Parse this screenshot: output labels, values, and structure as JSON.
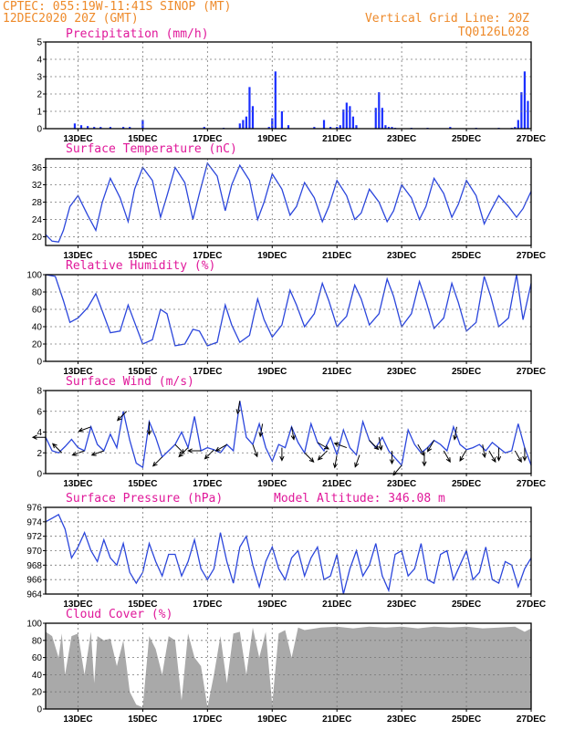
{
  "header": {
    "line1_left": "CPTEC:  055:19W-11:41S  SINOP (MT)",
    "line2_left": "12DEC2020 20Z (GMT)",
    "line1_right": "Vertical Grid Line: 20Z",
    "line2_right": "TQ0126L028"
  },
  "model_altitude_label": "Model Altitude: 346.08 m",
  "colors": {
    "line": "#2b46dc",
    "bar": "#1a2fff",
    "cloud": "#a9a9a9",
    "title": "#e0189a",
    "header": "#ee8a2a"
  },
  "chart_data": [
    {
      "type": "bar",
      "title": "Precipitation (mm/h)",
      "ylim": [
        0,
        5
      ],
      "yticks": [
        0,
        1,
        2,
        3,
        4,
        5
      ],
      "x_tick_labels": [
        "13DEC",
        "15DEC",
        "17DEC",
        "19DEC",
        "21DEC",
        "23DEC",
        "25DEC",
        "27DEC"
      ],
      "grid": true,
      "x": [
        12.9,
        13.1,
        13.3,
        13.5,
        13.7,
        14.0,
        14.4,
        14.6,
        15.0,
        16.9,
        17.5,
        18.0,
        18.1,
        18.2,
        18.3,
        18.4,
        18.9,
        19.0,
        19.1,
        19.3,
        19.5,
        20.3,
        20.6,
        20.8,
        21.0,
        21.1,
        21.2,
        21.3,
        21.4,
        21.5,
        21.6,
        22.2,
        22.3,
        22.4,
        22.5,
        22.6,
        22.7,
        22.8,
        23.3,
        23.8,
        24.5,
        25.3,
        26.0,
        26.4,
        26.5,
        26.6,
        26.7,
        26.8,
        26.9
      ],
      "values": [
        0.3,
        0.2,
        0.15,
        0.1,
        0.1,
        0.1,
        0.1,
        0.1,
        0.5,
        0.1,
        0.05,
        0.3,
        0.5,
        0.7,
        2.4,
        1.3,
        0.1,
        0.6,
        3.3,
        1.0,
        0.2,
        0.1,
        0.5,
        0.1,
        0.1,
        0.2,
        1.1,
        1.5,
        1.3,
        0.7,
        0.2,
        1.2,
        2.1,
        1.2,
        0.2,
        0.1,
        0.1,
        0.05,
        0.05,
        0.05,
        0.1,
        0.05,
        0.05,
        0.05,
        0.1,
        0.5,
        2.1,
        3.3,
        1.6
      ]
    },
    {
      "type": "line",
      "title": "Surface Temperature (nC)",
      "ylim": [
        18,
        38
      ],
      "yticks": [
        20,
        24,
        28,
        32,
        36
      ],
      "x_tick_labels": [
        "13DEC",
        "15DEC",
        "17DEC",
        "19DEC",
        "21DEC",
        "23DEC",
        "25DEC",
        "27DEC"
      ],
      "grid": true,
      "x": [
        12.0,
        12.2,
        12.4,
        12.55,
        12.75,
        13.0,
        13.3,
        13.55,
        13.75,
        14.0,
        14.3,
        14.55,
        14.75,
        15.0,
        15.3,
        15.55,
        15.75,
        16.0,
        16.3,
        16.55,
        16.75,
        17.0,
        17.3,
        17.55,
        17.75,
        18.0,
        18.3,
        18.55,
        18.75,
        19.0,
        19.3,
        19.55,
        19.75,
        20.0,
        20.3,
        20.55,
        20.75,
        21.0,
        21.3,
        21.55,
        21.75,
        22.0,
        22.3,
        22.55,
        22.75,
        23.0,
        23.3,
        23.55,
        23.75,
        24.0,
        24.3,
        24.55,
        24.75,
        25.0,
        25.3,
        25.55,
        25.75,
        26.0,
        26.3,
        26.55,
        26.75,
        27.0
      ],
      "values": [
        20.5,
        19.0,
        18.8,
        21.5,
        27.0,
        29.5,
        25.0,
        21.5,
        28.0,
        33.5,
        29.0,
        23.5,
        31.0,
        36.0,
        33.0,
        24.5,
        29.5,
        36.0,
        32.5,
        24.0,
        30.0,
        37.0,
        34.0,
        26.0,
        32.0,
        36.5,
        33.0,
        24.0,
        28.0,
        34.5,
        31.0,
        25.0,
        27.0,
        32.5,
        29.0,
        23.5,
        27.0,
        33.0,
        29.5,
        24.0,
        25.5,
        31.0,
        28.0,
        23.5,
        26.0,
        32.0,
        29.0,
        24.0,
        27.0,
        33.5,
        30.0,
        24.5,
        27.5,
        33.0,
        29.5,
        23.0,
        26.0,
        29.5,
        27.0,
        24.5,
        26.5,
        30.5
      ]
    },
    {
      "type": "line",
      "title": "Relative Humidity (%)",
      "ylim": [
        0,
        100
      ],
      "yticks": [
        0,
        20,
        40,
        60,
        80,
        100
      ],
      "x_tick_labels": [
        "13DEC",
        "15DEC",
        "17DEC",
        "19DEC",
        "21DEC",
        "23DEC",
        "25DEC",
        "27DEC"
      ],
      "grid": true,
      "x": [
        12.0,
        12.3,
        12.55,
        12.75,
        13.0,
        13.3,
        13.55,
        13.75,
        14.0,
        14.3,
        14.55,
        14.75,
        15.0,
        15.3,
        15.55,
        15.75,
        16.0,
        16.3,
        16.55,
        16.75,
        17.0,
        17.3,
        17.55,
        17.75,
        18.0,
        18.3,
        18.55,
        18.75,
        19.0,
        19.3,
        19.55,
        19.75,
        20.0,
        20.3,
        20.55,
        20.75,
        21.0,
        21.3,
        21.55,
        21.75,
        22.0,
        22.3,
        22.55,
        22.75,
        23.0,
        23.3,
        23.55,
        23.75,
        24.0,
        24.3,
        24.55,
        24.75,
        25.0,
        25.3,
        25.55,
        25.75,
        26.0,
        26.3,
        26.55,
        26.75,
        27.0
      ],
      "values": [
        100,
        98,
        70,
        45,
        50,
        62,
        78,
        58,
        33,
        35,
        65,
        45,
        20,
        25,
        60,
        55,
        18,
        20,
        37,
        35,
        18,
        22,
        65,
        42,
        22,
        30,
        72,
        48,
        28,
        42,
        82,
        65,
        40,
        55,
        90,
        70,
        40,
        52,
        88,
        72,
        42,
        55,
        95,
        75,
        40,
        55,
        92,
        70,
        38,
        50,
        90,
        68,
        35,
        45,
        98,
        75,
        40,
        50,
        100,
        48,
        90
      ]
    },
    {
      "type": "line",
      "title": "Surface Wind (m/s)",
      "ylim": [
        0,
        8
      ],
      "yticks": [
        0,
        2,
        4,
        6,
        8
      ],
      "x_tick_labels": [
        "13DEC",
        "15DEC",
        "17DEC",
        "19DEC",
        "21DEC",
        "23DEC",
        "25DEC",
        "27DEC"
      ],
      "grid": true,
      "x": [
        12.0,
        12.2,
        12.4,
        12.6,
        12.8,
        13.0,
        13.2,
        13.4,
        13.6,
        13.8,
        14.0,
        14.2,
        14.4,
        14.6,
        14.8,
        15.0,
        15.2,
        15.4,
        15.6,
        15.8,
        16.0,
        16.2,
        16.4,
        16.6,
        16.8,
        17.0,
        17.2,
        17.4,
        17.6,
        17.8,
        18.0,
        18.2,
        18.4,
        18.6,
        18.8,
        19.0,
        19.2,
        19.4,
        19.6,
        19.8,
        20.0,
        20.2,
        20.4,
        20.6,
        20.8,
        21.0,
        21.2,
        21.4,
        21.6,
        21.8,
        22.0,
        22.2,
        22.4,
        22.6,
        22.8,
        23.0,
        23.2,
        23.4,
        23.6,
        23.8,
        24.0,
        24.2,
        24.4,
        24.6,
        24.8,
        25.0,
        25.2,
        25.4,
        25.6,
        25.8,
        26.0,
        26.2,
        26.4,
        26.6,
        26.8,
        27.0
      ],
      "values": [
        3.5,
        2.2,
        2.0,
        2.6,
        3.3,
        2.5,
        2.2,
        4.5,
        2.8,
        2.2,
        3.8,
        2.5,
        6.0,
        3.2,
        1.0,
        0.6,
        5.0,
        3.5,
        1.6,
        2.2,
        2.8,
        4.0,
        2.5,
        5.5,
        2.2,
        2.5,
        2.3,
        2.0,
        2.8,
        2.2,
        7.0,
        3.5,
        2.8,
        4.8,
        2.5,
        1.2,
        2.8,
        2.5,
        4.5,
        3.0,
        2.0,
        4.8,
        3.0,
        2.2,
        3.5,
        1.8,
        4.2,
        2.5,
        1.8,
        5.0,
        3.2,
        2.5,
        3.5,
        2.2,
        1.5,
        0.8,
        4.2,
        2.8,
        2.0,
        2.5,
        3.2,
        2.8,
        2.2,
        4.5,
        2.8,
        2.3,
        2.5,
        2.8,
        2.2,
        3.0,
        2.5,
        2.0,
        2.2,
        4.8,
        2.5,
        0.8
      ],
      "arrows_x": [
        12.0,
        12.5,
        13.2,
        13.4,
        13.8,
        14.5,
        15.2,
        15.6,
        16.0,
        16.4,
        16.8,
        17.2,
        17.6,
        18.0,
        18.4,
        18.7,
        19.3,
        19.6,
        20.0,
        20.4,
        20.7,
        21.0,
        21.3,
        21.7,
        22.0,
        22.3,
        22.7,
        23.0,
        23.5,
        23.7,
        24.0,
        24.3,
        24.7,
        25.0,
        25.5,
        25.7,
        26.0,
        26.5,
        26.8
      ],
      "arrows_dir": [
        180,
        225,
        160,
        160,
        160,
        135,
        90,
        135,
        45,
        135,
        180,
        135,
        150,
        100,
        70,
        100,
        90,
        80,
        45,
        30,
        135,
        100,
        200,
        110,
        45,
        80,
        90,
        130,
        60,
        90,
        120,
        60,
        100,
        120,
        80,
        60,
        90,
        60,
        90
      ]
    },
    {
      "type": "line",
      "title": "Surface Pressure (hPa)",
      "ylim": [
        964,
        976
      ],
      "yticks": [
        964,
        966,
        968,
        970,
        972,
        974,
        976
      ],
      "x_tick_labels": [
        "13DEC",
        "15DEC",
        "17DEC",
        "19DEC",
        "21DEC",
        "23DEC",
        "25DEC",
        "27DEC"
      ],
      "grid": true,
      "x": [
        12.0,
        12.2,
        12.4,
        12.6,
        12.8,
        13.0,
        13.2,
        13.4,
        13.6,
        13.8,
        14.0,
        14.2,
        14.4,
        14.6,
        14.8,
        15.0,
        15.2,
        15.4,
        15.6,
        15.8,
        16.0,
        16.2,
        16.4,
        16.6,
        16.8,
        17.0,
        17.2,
        17.4,
        17.6,
        17.8,
        18.0,
        18.2,
        18.4,
        18.6,
        18.8,
        19.0,
        19.2,
        19.4,
        19.6,
        19.8,
        20.0,
        20.2,
        20.4,
        20.6,
        20.8,
        21.0,
        21.2,
        21.4,
        21.6,
        21.8,
        22.0,
        22.2,
        22.4,
        22.6,
        22.8,
        23.0,
        23.2,
        23.4,
        23.6,
        23.8,
        24.0,
        24.2,
        24.4,
        24.6,
        24.8,
        25.0,
        25.2,
        25.4,
        25.6,
        25.8,
        26.0,
        26.2,
        26.4,
        26.6,
        26.8,
        27.0
      ],
      "values": [
        974.0,
        974.5,
        975.0,
        973.0,
        969.0,
        970.5,
        972.5,
        970.0,
        968.5,
        971.5,
        969.0,
        968.0,
        971.0,
        967.0,
        965.5,
        967.0,
        971.0,
        968.5,
        966.5,
        969.5,
        969.5,
        966.5,
        968.5,
        971.5,
        967.5,
        966.0,
        967.5,
        972.5,
        968.5,
        965.5,
        970.5,
        972.0,
        968.0,
        965.0,
        968.5,
        970.5,
        967.5,
        966.0,
        969.0,
        970.0,
        966.5,
        969.0,
        970.5,
        966.0,
        966.5,
        969.5,
        964.0,
        967.5,
        970.0,
        966.5,
        968.0,
        971.0,
        966.5,
        964.5,
        969.5,
        970.0,
        966.5,
        967.5,
        971.0,
        966.0,
        965.5,
        969.5,
        970.0,
        966.0,
        968.0,
        970.0,
        966.0,
        967.0,
        970.5,
        966.0,
        965.5,
        968.5,
        968.0,
        965.0,
        967.5,
        969.0
      ]
    },
    {
      "type": "area",
      "title": "Cloud Cover (%)",
      "ylim": [
        0,
        100
      ],
      "yticks": [
        0,
        20,
        40,
        60,
        80,
        100
      ],
      "x_tick_labels": [
        "13DEC",
        "15DEC",
        "17DEC",
        "19DEC",
        "21DEC",
        "23DEC",
        "25DEC",
        "27DEC"
      ],
      "grid": true,
      "x": [
        12.0,
        12.2,
        12.4,
        12.5,
        12.6,
        12.8,
        13.0,
        13.2,
        13.4,
        13.5,
        13.6,
        13.8,
        14.0,
        14.2,
        14.4,
        14.6,
        14.8,
        15.0,
        15.2,
        15.4,
        15.6,
        15.8,
        16.0,
        16.2,
        16.4,
        16.6,
        16.8,
        17.0,
        17.2,
        17.4,
        17.6,
        17.8,
        18.0,
        18.2,
        18.4,
        18.6,
        18.8,
        19.0,
        19.2,
        19.4,
        19.6,
        19.8,
        20.0,
        20.5,
        21.0,
        21.5,
        22.0,
        22.5,
        23.0,
        23.5,
        24.0,
        24.5,
        25.0,
        25.5,
        26.0,
        26.5,
        26.8,
        27.0
      ],
      "values": [
        90,
        85,
        60,
        88,
        40,
        85,
        88,
        40,
        90,
        30,
        85,
        80,
        82,
        50,
        80,
        20,
        5,
        2,
        85,
        70,
        40,
        85,
        80,
        10,
        88,
        60,
        50,
        2,
        40,
        85,
        30,
        88,
        90,
        40,
        95,
        60,
        90,
        5,
        88,
        92,
        60,
        95,
        92,
        95,
        96,
        94,
        96,
        95,
        96,
        94,
        96,
        95,
        96,
        94,
        95,
        96,
        90,
        94
      ]
    }
  ]
}
